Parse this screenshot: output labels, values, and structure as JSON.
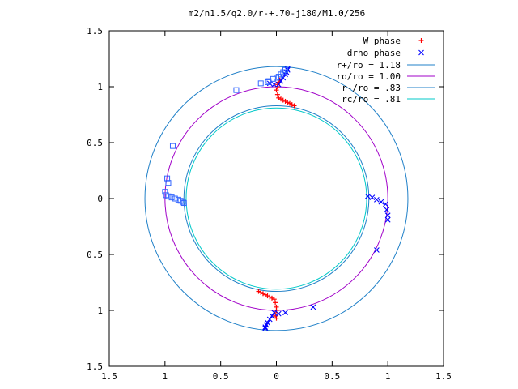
{
  "chart_data": {
    "type": "scatter",
    "title": "m2/n1.5/q2.0/r-+.70-j180/M1.0/256",
    "xlabel": "",
    "ylabel": "",
    "xlim": [
      -1.5,
      1.5
    ],
    "ylim": [
      -1.5,
      1.5
    ],
    "x_ticks": [
      -1.5,
      -1,
      -0.5,
      0,
      0.5,
      1,
      1.5
    ],
    "y_ticks": [
      -1.5,
      -1,
      -0.5,
      0,
      0.5,
      1,
      1.5
    ],
    "x_tick_labels": [
      "1.5",
      "1",
      "0.5",
      "0",
      "0.5",
      "1",
      "1.5"
    ],
    "y_tick_labels": [
      "1.5",
      "1",
      "0.5",
      "0",
      "0.5",
      "1",
      "1.5"
    ],
    "grid": false,
    "legend_position": "top-right",
    "series": [
      {
        "name": "W phase",
        "marker": "plus",
        "color": "#ff0000",
        "x": [
          0.0,
          0.01,
          0.02,
          0.04,
          0.06,
          0.08,
          0.1,
          0.12,
          0.14,
          0.16,
          0.0,
          -0.01,
          -0.02,
          -0.04,
          -0.06,
          -0.08,
          -0.1,
          -0.12,
          -0.14,
          -0.16,
          0.0,
          -0.01,
          -0.01,
          0.0,
          0.01,
          0.01,
          0.02,
          0.03
        ],
        "y": [
          0.97,
          0.93,
          0.9,
          0.89,
          0.88,
          0.87,
          0.86,
          0.85,
          0.84,
          0.83,
          -0.97,
          -0.93,
          -0.9,
          -0.89,
          -0.88,
          -0.87,
          -0.86,
          -0.85,
          -0.84,
          -0.83,
          -1.0,
          -1.03,
          -1.05,
          -1.07,
          1.0,
          1.02,
          1.04,
          1.06
        ]
      },
      {
        "name": "drho phase",
        "marker": "cross",
        "color": "#0000ff",
        "x": [
          0.02,
          0.04,
          0.06,
          0.08,
          0.09,
          0.1,
          0.1,
          -0.02,
          -0.04,
          -0.06,
          -0.08,
          -0.09,
          -0.1,
          -0.1,
          0.82,
          0.86,
          0.9,
          0.94,
          0.98,
          0.99,
          1.0,
          1.0,
          0.9,
          0.33,
          0.08,
          0.02,
          -0.02,
          -0.06
        ],
        "y": [
          1.02,
          1.05,
          1.08,
          1.11,
          1.13,
          1.15,
          1.16,
          -1.02,
          -1.05,
          -1.08,
          -1.11,
          -1.13,
          -1.15,
          -1.16,
          0.02,
          0.01,
          -0.01,
          -0.03,
          -0.05,
          -0.1,
          -0.15,
          -0.19,
          -0.46,
          -0.97,
          -1.02,
          -1.03,
          1.02,
          1.03
        ]
      },
      {
        "name": "",
        "marker": "square",
        "color": "#3366ff",
        "x": [
          -1.0,
          -0.99,
          -0.97,
          -0.94,
          -0.91,
          -0.88,
          -0.86,
          -0.84,
          -0.83,
          -0.93,
          -0.36,
          -0.14,
          -0.08,
          -0.07,
          -0.03,
          0.0,
          0.02,
          0.04,
          0.06,
          0.08,
          -0.98,
          -0.97
        ],
        "y": [
          0.06,
          0.03,
          0.02,
          0.01,
          0.0,
          -0.01,
          -0.02,
          -0.03,
          -0.04,
          0.47,
          0.97,
          1.03,
          1.04,
          1.05,
          1.07,
          1.08,
          1.09,
          1.11,
          1.13,
          1.15,
          0.18,
          0.14
        ]
      }
    ],
    "circles": [
      {
        "name": "r+/ro = 1.18",
        "radius": 1.18,
        "color": "#2080c8"
      },
      {
        "name": "ro/ro = 1.00",
        "radius": 1.0,
        "color": "#a000c8"
      },
      {
        "name": "r-/ro = .83",
        "radius": 0.83,
        "color": "#2080c8"
      },
      {
        "name": "rc/ro = .81",
        "radius": 0.81,
        "color": "#00c8c8"
      }
    ]
  }
}
